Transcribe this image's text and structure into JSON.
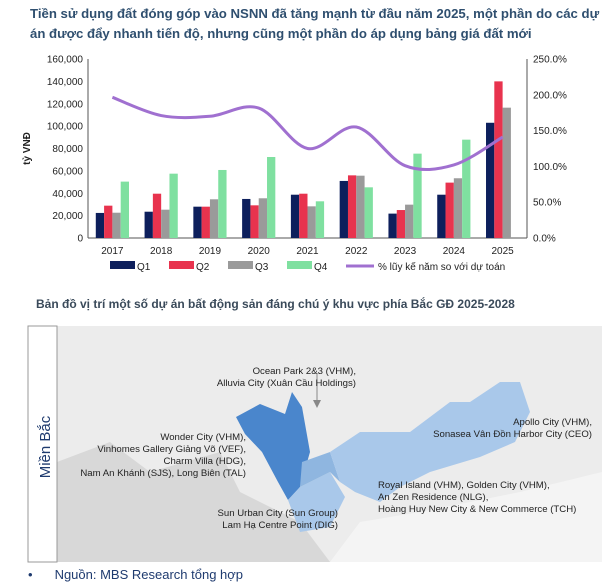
{
  "title": "Tiền sử dụng đất đóng góp vào NSNN đã tăng mạnh từ đầu năm 2025, một phần do các dự án được đẩy nhanh tiến độ, nhưng cũng một phần do áp dụng bảng giá đất mới",
  "chart_data": {
    "type": "bar",
    "ylabel": "tỷ VNĐ",
    "ylim": [
      0,
      160000
    ],
    "y2lim": [
      0,
      250
    ],
    "yticks": [
      "0",
      "20,000",
      "40,000",
      "60,000",
      "80,000",
      "100,000",
      "120,000",
      "140,000",
      "160,000"
    ],
    "y2ticks": [
      "0.0%",
      "50.0%",
      "100.0%",
      "150.0%",
      "200.0%",
      "250.0%"
    ],
    "categories": [
      "2017",
      "2018",
      "2019",
      "2020",
      "2021",
      "2022",
      "2023",
      "2024",
      "2025"
    ],
    "series": [
      {
        "name": "Q1",
        "color": "#0d1f5c",
        "values": [
          22400,
          23500,
          28000,
          34900,
          38700,
          51000,
          21800,
          38700,
          103000
        ]
      },
      {
        "name": "Q2",
        "color": "#e8334e",
        "values": [
          28900,
          39600,
          28000,
          29200,
          39600,
          56000,
          25000,
          49500,
          140000
        ]
      },
      {
        "name": "Q3",
        "color": "#9a9a9a",
        "values": [
          22600,
          25300,
          34600,
          35500,
          28300,
          55700,
          29800,
          53400,
          116500
        ]
      },
      {
        "name": "Q4",
        "color": "#7fe0a0",
        "values": [
          50400,
          57500,
          60800,
          72400,
          32800,
          45300,
          75400,
          87900,
          null
        ]
      },
      {
        "name": "% lũy kế năm so với dự toán",
        "type": "line",
        "axis": "right",
        "color": "#a070d0",
        "values": [
          196.5,
          171,
          170,
          181.5,
          125,
          155,
          101,
          102,
          141
        ]
      }
    ],
    "legend": "bottom"
  },
  "map": {
    "title": "Bản đồ vị trí một số dự án bất động sản đáng chú ý khu vực phía Bắc GĐ 2025-2028",
    "region": "Miền Bắc",
    "labels": {
      "ocean": [
        "Ocean Park 2&3 (VHM),",
        "Alluvia City (Xuân Cầu Holdings)"
      ],
      "hanoi": [
        "Wonder City (VHM),",
        "Vinhomes Gallery Giảng Võ (VEF),",
        "Charm Villa (HDG),",
        "Nam An Khánh (SJS), Long Biên (TAL)"
      ],
      "sun": [
        "Sun Urban City (Sun Group)",
        "Lam Hạ Centre Point (DIG)"
      ],
      "apollo": [
        "Apollo City (VHM),",
        "Sonasea Vân Đồn Harbor City (CEO)"
      ],
      "royal": [
        "Royal Island (VHM), Golden City (VHM),",
        "An Zen Residence (NLG),",
        "Hoàng Huy New City & New Commerce (TCH)"
      ]
    },
    "colors": {
      "hanoi": "#4a86cc",
      "mid": "#8fb6e0",
      "light": "#a9c8ea",
      "land": "#dcdcdc"
    }
  },
  "source": "Nguồn: MBS Research tổng hợp"
}
